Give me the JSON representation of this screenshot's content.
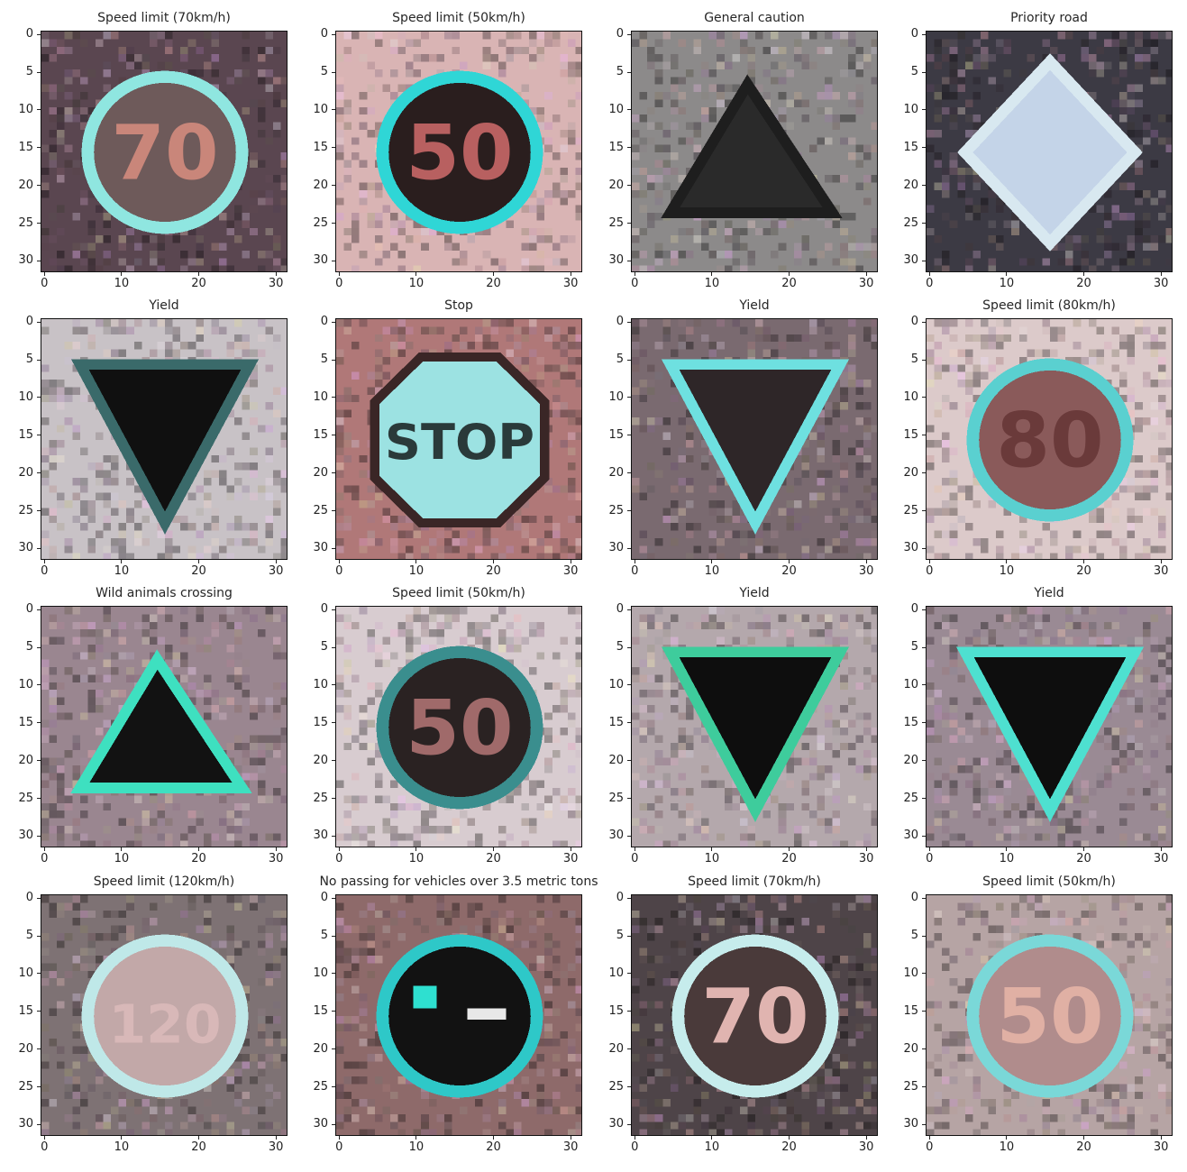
{
  "figure": {
    "rows": 4,
    "cols": 4,
    "tick_labels": [
      "0",
      "5",
      "10",
      "15",
      "20",
      "25",
      "30"
    ],
    "x_tick_labels": [
      "0",
      "10",
      "20",
      "30"
    ],
    "panels": [
      {
        "title": "Speed limit (70km/h)",
        "sign": "speed",
        "text": "70",
        "bg": "#5a4650",
        "ring": "#8fe6e0",
        "fill": "#6e5a5a",
        "textcolor": "#c9867a"
      },
      {
        "title": "Speed limit (50km/h)",
        "sign": "speed",
        "text": "50",
        "bg": "#d9b4b4",
        "ring": "#2fd6d6",
        "fill": "#2a1e1e",
        "textcolor": "#b86060"
      },
      {
        "title": "General caution",
        "sign": "warning",
        "text": "",
        "bg": "#8c8a8a",
        "ring": "#1e1e1e",
        "fill": "#2a2a2a",
        "textcolor": "#000000"
      },
      {
        "title": "Priority road",
        "sign": "diamond",
        "text": "",
        "bg": "#3c3a44",
        "ring": "#d8e8f0",
        "fill": "#c4d4e8",
        "textcolor": "#000000"
      },
      {
        "title": "Yield",
        "sign": "yield",
        "text": "",
        "bg": "#c8c2c6",
        "ring": "#3a6a6a",
        "fill": "#101010",
        "textcolor": "#000000"
      },
      {
        "title": "Stop",
        "sign": "stop",
        "text": "STOP",
        "bg": "#b07878",
        "ring": "#3a2626",
        "fill": "#9ce2e2",
        "textcolor": "#2a3a3a"
      },
      {
        "title": "Yield",
        "sign": "yield",
        "text": "",
        "bg": "#7a6a70",
        "ring": "#6ee0e0",
        "fill": "#2e2628",
        "textcolor": "#000000"
      },
      {
        "title": "Speed limit (80km/h)",
        "sign": "speed",
        "text": "80",
        "bg": "#dccaca",
        "ring": "#5ad0d0",
        "fill": "#8a5a5a",
        "textcolor": "#6a3a3a"
      },
      {
        "title": "Wild animals crossing",
        "sign": "warning",
        "text": "",
        "bg": "#9a8690",
        "ring": "#3ee0c0",
        "fill": "#121212",
        "textcolor": "#000000"
      },
      {
        "title": "Speed limit (50km/h)",
        "sign": "speed",
        "text": "50",
        "bg": "#d8ccd0",
        "ring": "#3a8e8e",
        "fill": "#2a2222",
        "textcolor": "#a06a6a"
      },
      {
        "title": "Yield",
        "sign": "yield",
        "text": "",
        "bg": "#b4a8ac",
        "ring": "#3ecc9c",
        "fill": "#0e0e0e",
        "textcolor": "#000000"
      },
      {
        "title": "Yield",
        "sign": "yield",
        "text": "",
        "bg": "#9a8a94",
        "ring": "#4ee0d0",
        "fill": "#0e0e0e",
        "textcolor": "#000000"
      },
      {
        "title": "Speed limit (120km/h)",
        "sign": "speed",
        "text": "120",
        "bg": "#7e7274",
        "ring": "#bfe8e8",
        "fill": "#c2a8a8",
        "textcolor": "#d8b8b8"
      },
      {
        "title": "No passing for vehicles over 3.5 metric tons",
        "sign": "nopass",
        "text": "",
        "bg": "#8e6a6a",
        "ring": "#2ec8c8",
        "fill": "#121212",
        "textcolor": "#000000"
      },
      {
        "title": "Speed limit (70km/h)",
        "sign": "speed",
        "text": "70",
        "bg": "#4e4448",
        "ring": "#c6ecec",
        "fill": "#4a3a3a",
        "textcolor": "#e0b4b0"
      },
      {
        "title": "Speed limit (50km/h)",
        "sign": "speed",
        "text": "50",
        "bg": "#b6a4a4",
        "ring": "#7ad8d8",
        "fill": "#b08c8c",
        "textcolor": "#e0b0a4"
      }
    ]
  }
}
